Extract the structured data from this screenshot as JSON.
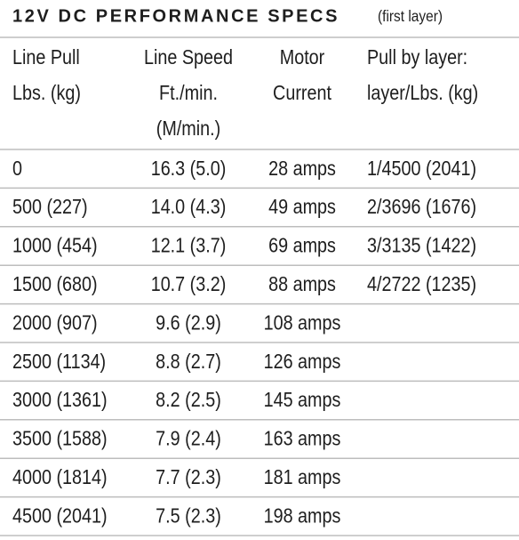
{
  "title": "12V DC PERFORMANCE SPECS",
  "subtitle": "(first layer)",
  "table": {
    "headers": [
      [
        "Line Pull",
        "Lbs. (kg)"
      ],
      [
        "Line Speed",
        "Ft./min.",
        "(M/min.)"
      ],
      [
        "Motor",
        "Current"
      ],
      [
        "Pull by layer:",
        "layer/Lbs. (kg)"
      ]
    ],
    "rows": [
      [
        "0",
        "16.3 (5.0)",
        "28 amps",
        "1/4500 (2041)"
      ],
      [
        "500 (227)",
        "14.0 (4.3)",
        "49 amps",
        "2/3696 (1676)"
      ],
      [
        "1000 (454)",
        "12.1 (3.7)",
        "69 amps",
        "3/3135 (1422)"
      ],
      [
        "1500 (680)",
        "10.7 (3.2)",
        "88 amps",
        "4/2722 (1235)"
      ],
      [
        "2000 (907)",
        "9.6 (2.9)",
        "108 amps"
      ],
      [
        "2500 (1134)",
        "8.8 (2.7)",
        "126 amps"
      ],
      [
        "3000 (1361)",
        "8.2 (2.5)",
        "145 amps"
      ],
      [
        "3500 (1588)",
        "7.9 (2.4)",
        "163 amps"
      ],
      [
        "4000 (1814)",
        "7.7 (2.3)",
        "181 amps"
      ],
      [
        "4500 (2041)",
        "7.5 (2.3)",
        "198 amps"
      ]
    ]
  }
}
